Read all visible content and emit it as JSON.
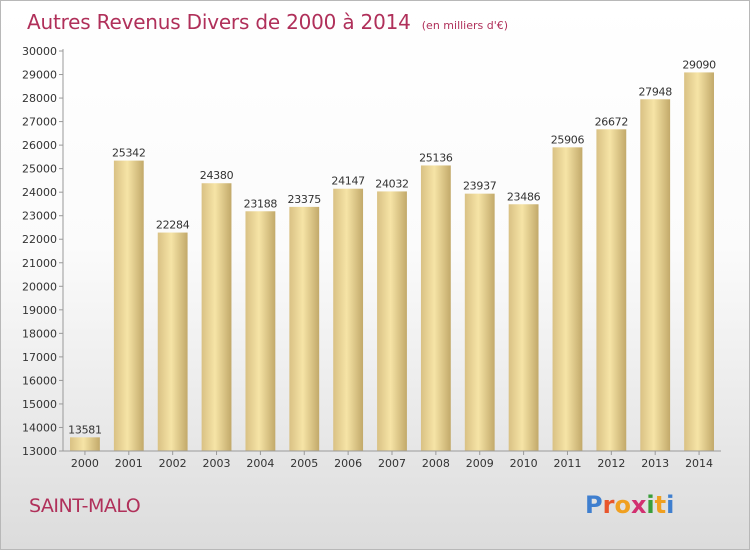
{
  "chart_data": {
    "type": "bar",
    "title": "Autres Revenus Divers de 2000 à 2014",
    "subtitle": "(en milliers d'€)",
    "categories": [
      "2000",
      "2001",
      "2002",
      "2003",
      "2004",
      "2005",
      "2006",
      "2007",
      "2008",
      "2009",
      "2010",
      "2011",
      "2012",
      "2013",
      "2014"
    ],
    "values": [
      13581,
      25342,
      22284,
      24380,
      23188,
      23375,
      24147,
      24032,
      25136,
      23937,
      23486,
      25906,
      26672,
      27948,
      29090
    ],
    "ylim": [
      13000,
      30000
    ],
    "yticks": [
      13000,
      14000,
      15000,
      16000,
      17000,
      18000,
      19000,
      20000,
      21000,
      22000,
      23000,
      24000,
      25000,
      26000,
      27000,
      28000,
      29000,
      30000
    ],
    "grid": false,
    "data_labels": true,
    "colors": {
      "bar_light": "#f6e4a6",
      "bar_dark": "#c2a96a",
      "text": "#333333",
      "title": "#b0305a"
    }
  },
  "footer": {
    "city": "SAINT-MALO"
  },
  "logo": {
    "letters": [
      {
        "char": "P",
        "color": "#3f7fcf"
      },
      {
        "char": "r",
        "color": "#e8552c"
      },
      {
        "char": "o",
        "color": "#f0a020"
      },
      {
        "char": "x",
        "color": "#d23070"
      },
      {
        "char": "i",
        "color": "#3a9e3a"
      },
      {
        "char": "t",
        "color": "#f0a020"
      },
      {
        "char": "i",
        "color": "#3f7fcf"
      }
    ]
  }
}
